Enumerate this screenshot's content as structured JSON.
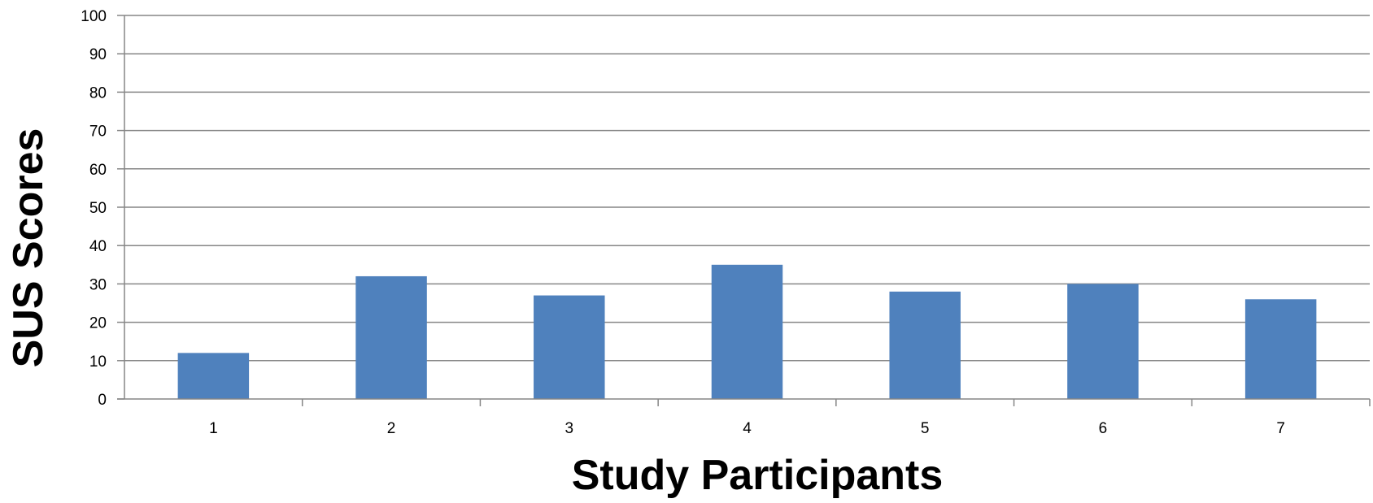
{
  "chart_data": {
    "type": "bar",
    "title": "",
    "xlabel": "Study Participants",
    "ylabel": "SUS Scores",
    "categories": [
      "1",
      "2",
      "3",
      "4",
      "5",
      "6",
      "7"
    ],
    "values": [
      12,
      32,
      27,
      35,
      28,
      30,
      26
    ],
    "ylim": [
      0,
      100
    ],
    "yticks": [
      "0",
      "10",
      "20",
      "30",
      "40",
      "50",
      "60",
      "70",
      "80",
      "90",
      "100"
    ],
    "grid": true,
    "legend": "none",
    "colors": {
      "bar": "#4f81bd",
      "grid": "#868686",
      "axis": "#868686"
    }
  }
}
